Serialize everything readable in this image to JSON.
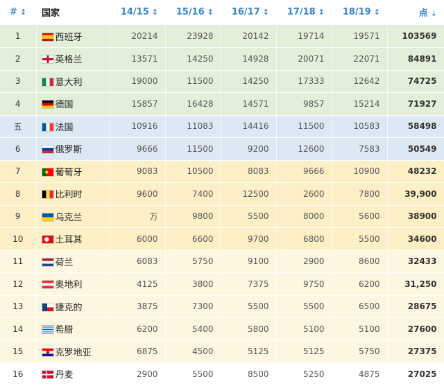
{
  "headers": {
    "rank": "#",
    "country": "国家",
    "y1": "14/15",
    "y2": "15/16",
    "y3": "16/17",
    "y4": "17/18",
    "y5": "18/19",
    "points": "点"
  },
  "sort_icon": "↕",
  "sort_desc_icon": "⇣",
  "rows": [
    {
      "rank": "1",
      "country": "西班牙",
      "flag": "es",
      "group": "green",
      "y1": "20214",
      "y2": "23928",
      "y3": "20142",
      "y4": "19714",
      "y5": "19571",
      "points": "103569"
    },
    {
      "rank": "2",
      "country": "英格兰",
      "flag": "en",
      "group": "green",
      "y1": "13571",
      "y2": "14250",
      "y3": "14928",
      "y4": "20071",
      "y5": "22071",
      "points": "84891"
    },
    {
      "rank": "3",
      "country": "意大利",
      "flag": "it",
      "group": "green",
      "y1": "19000",
      "y2": "11500",
      "y3": "14250",
      "y4": "17333",
      "y5": "12642",
      "points": "74725"
    },
    {
      "rank": "4",
      "country": "德国",
      "flag": "de",
      "group": "green",
      "y1": "15857",
      "y2": "16428",
      "y3": "14571",
      "y4": "9857",
      "y5": "15214",
      "points": "71927"
    },
    {
      "rank": "五",
      "country": "法国",
      "flag": "fr",
      "group": "blue",
      "y1": "10916",
      "y2": "11083",
      "y3": "14416",
      "y4": "11500",
      "y5": "10583",
      "points": "58498"
    },
    {
      "rank": "6",
      "country": "俄罗斯",
      "flag": "ru",
      "group": "blue",
      "y1": "9666",
      "y2": "11500",
      "y3": "9200",
      "y4": "12600",
      "y5": "7583",
      "points": "50549"
    },
    {
      "rank": "7",
      "country": "葡萄牙",
      "flag": "pt",
      "group": "yellow",
      "y1": "9083",
      "y2": "10500",
      "y3": "8083",
      "y4": "9666",
      "y5": "10900",
      "points": "48232"
    },
    {
      "rank": "8",
      "country": "比利时",
      "flag": "be",
      "group": "yellow",
      "y1": "9600",
      "y2": "7400",
      "y3": "12500",
      "y4": "2600",
      "y5": "7800",
      "points": "39,900"
    },
    {
      "rank": "9",
      "country": "乌克兰",
      "flag": "ua",
      "group": "yellow",
      "y1": "万",
      "y2": "9800",
      "y3": "5500",
      "y4": "8000",
      "y5": "5600",
      "points": "38900"
    },
    {
      "rank": "10",
      "country": "土耳其",
      "flag": "tr",
      "group": "yellow",
      "y1": "6000",
      "y2": "6600",
      "y3": "9700",
      "y4": "6800",
      "y5": "5500",
      "points": "34600"
    },
    {
      "rank": "11",
      "country": "荷兰",
      "flag": "nl",
      "group": "cream",
      "y1": "6083",
      "y2": "5750",
      "y3": "9100",
      "y4": "2900",
      "y5": "8600",
      "points": "32433"
    },
    {
      "rank": "12",
      "country": "奥地利",
      "flag": "at",
      "group": "cream",
      "y1": "4125",
      "y2": "3800",
      "y3": "7375",
      "y4": "9750",
      "y5": "6200",
      "points": "31,250"
    },
    {
      "rank": "13",
      "country": "捷克的",
      "flag": "cz",
      "group": "cream",
      "y1": "3875",
      "y2": "7300",
      "y3": "5500",
      "y4": "5500",
      "y5": "6500",
      "points": "28675"
    },
    {
      "rank": "14",
      "country": "希腊",
      "flag": "gr",
      "group": "cream",
      "y1": "6200",
      "y2": "5400",
      "y3": "5800",
      "y4": "5100",
      "y5": "5100",
      "points": "27600"
    },
    {
      "rank": "15",
      "country": "克罗地亚",
      "flag": "hr",
      "group": "cream",
      "y1": "6875",
      "y2": "4500",
      "y3": "5125",
      "y4": "5125",
      "y5": "5750",
      "points": "27375"
    },
    {
      "rank": "16",
      "country": "丹麦",
      "flag": "dk",
      "group": "white",
      "y1": "2900",
      "y2": "5500",
      "y3": "8500",
      "y4": "5250",
      "y5": "4875",
      "points": "27025"
    }
  ]
}
